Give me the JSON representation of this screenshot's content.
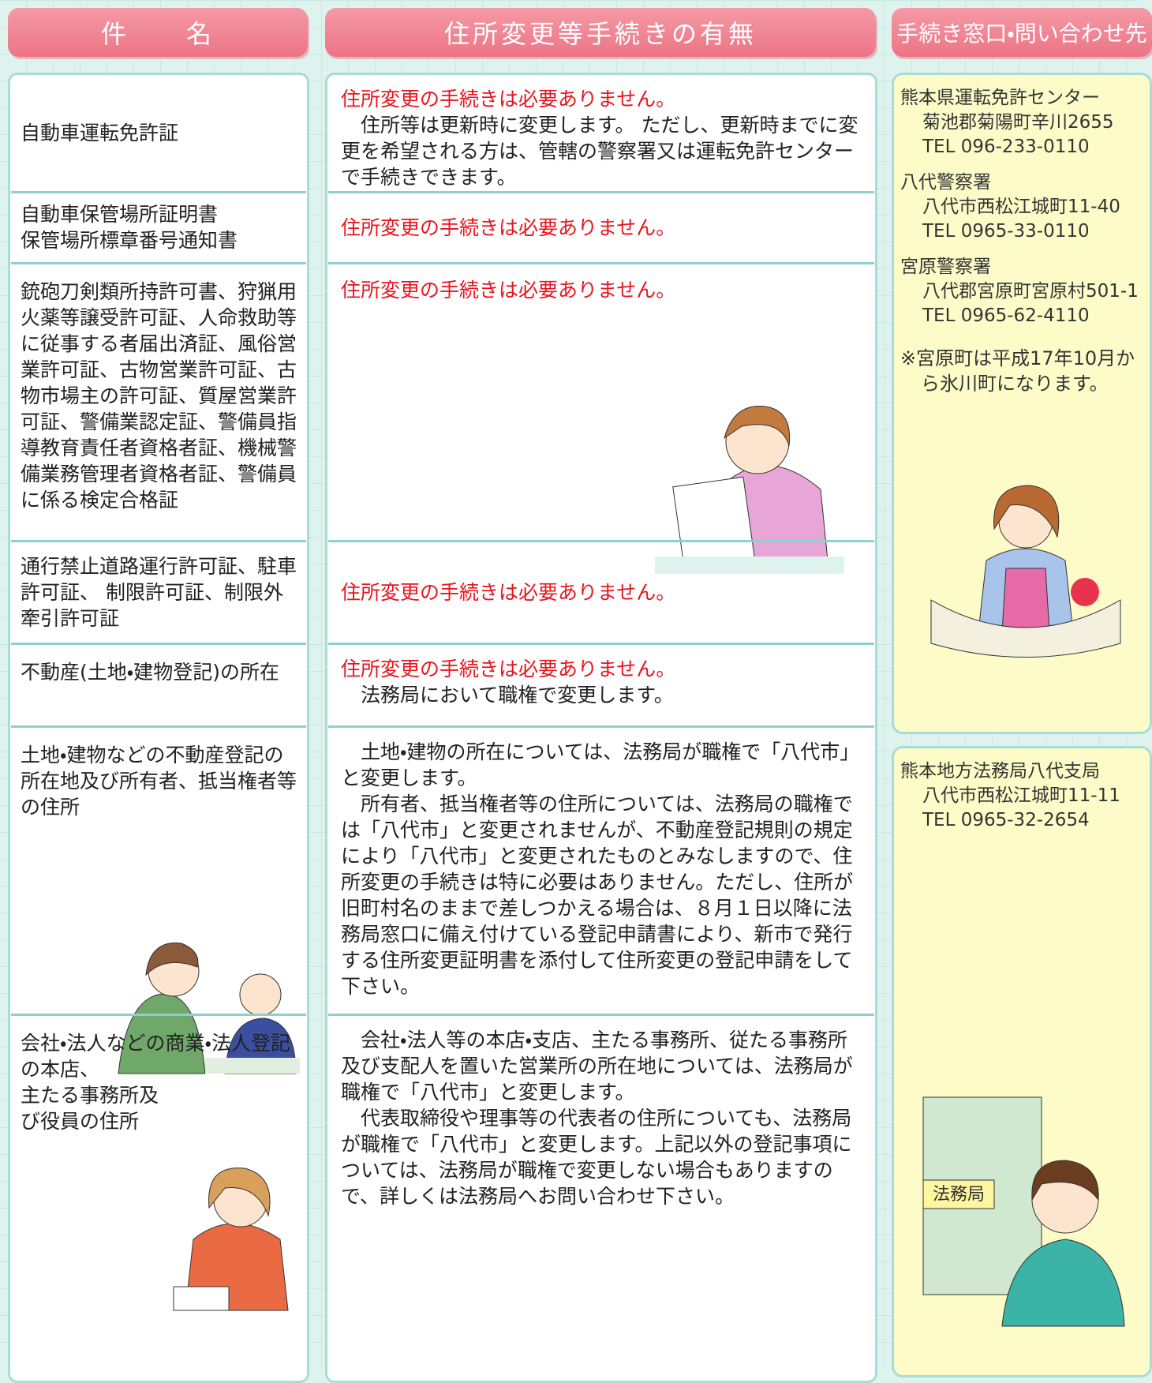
{
  "headers": [
    "件　　名",
    "住所変更等手続きの有無",
    "手続き窓口・問い合わせ先"
  ],
  "rows": [
    {
      "subject": "自動車運転免許証",
      "lead": "住所変更の手続きは必要ありません。",
      "paragraphs": [
        "住所等は更新時に変更します。 ただし、更新時までに変更を希望される方は、管轄の警察署又は運転免許センターで手続きできます。"
      ]
    },
    {
      "subject": "自動車保管場所証明書\n保管場所標章番号通知書",
      "lead": "住所変更の手続きは必要ありません。",
      "paragraphs": []
    },
    {
      "subject": "銃砲刀剣類所持許可書、狩猟用火薬等譲受許可証、人命救助等に従事する者届出済証、風俗営業許可証、古物営業許可証、古物市場主の許可証、質屋営業許可証、警備業認定証、警備員指導教育責任者資格者証、機械警備業務管理者資格者証、警備員に係る検定合格証",
      "lead": "住所変更の手続きは必要ありません。",
      "paragraphs": []
    },
    {
      "subject": "通行禁止道路運行許可証、駐車許可証、 制限許可証、制限外牽引許可証",
      "lead": "住所変更の手続きは必要ありません。",
      "paragraphs": []
    },
    {
      "subject": "不動産(土地・建物登記)の所在",
      "lead": "住所変更の手続きは必要ありません。",
      "paragraphs": [
        "法務局において職権で変更します。"
      ]
    },
    {
      "subject": "土地・建物などの不動産登記の所在地及び所有者、抵当権者等の住所",
      "lead": null,
      "paragraphs": [
        "土地・建物の所在については、法務局が職権で「八代市」と変更します。",
        "所有者、抵当権者等の住所については、法務局の職権では「八代市」と変更されませんが、不動産登記規則の規定により「八代市」と変更されたものとみなしますので、住所変更の手続きは特に必要はありません。ただし、住所が旧町村名のままで差しつかえる場合は、８月１日以降に法務局窓口に備え付けている登記申請書により、新市で発行する住所変更証明書を添付して住所変更の登記申請をして下さい。"
      ]
    },
    {
      "subject": "会社・法人などの商業・法人登記の本店、\n主たる事務所及\nび役員の住所",
      "lead": null,
      "paragraphs": [
        "会社・法人等の本店・支店、主たる事務所、従たる事務所及び支配人を置いた営業所の所在地については、法務局が職権で「八代市」と変更します。",
        "代表取締役や理事等の代表者の住所についても、法務局が職権で「八代市」と変更します。上記以外の登記事項については、法務局が職権で変更しない場合もありますので、詳しくは法務局へお問い合わせ下さい。"
      ]
    }
  ],
  "contacts": [
    {
      "entries": [
        {
          "name": "熊本県運転免許センター",
          "address": "菊池郡菊陽町辛川2655",
          "tel": "TEL 096-233-0110"
        },
        {
          "name": "八代警察署",
          "address": "八代市西松江城町11-40",
          "tel": "TEL 0965-33-0110"
        },
        {
          "name": "宮原警察署",
          "address": "八代郡宮原町宮原村501-1",
          "tel": "TEL 0965-62-4110"
        }
      ],
      "note": "※宮原町は平成17年10月から氷川町になります。"
    },
    {
      "entries": [
        {
          "name": "熊本地方法務局八代支局",
          "address": "八代市西松江城町11-11",
          "tel": "TEL 0965-32-2654"
        }
      ],
      "sign": "法務局"
    }
  ]
}
